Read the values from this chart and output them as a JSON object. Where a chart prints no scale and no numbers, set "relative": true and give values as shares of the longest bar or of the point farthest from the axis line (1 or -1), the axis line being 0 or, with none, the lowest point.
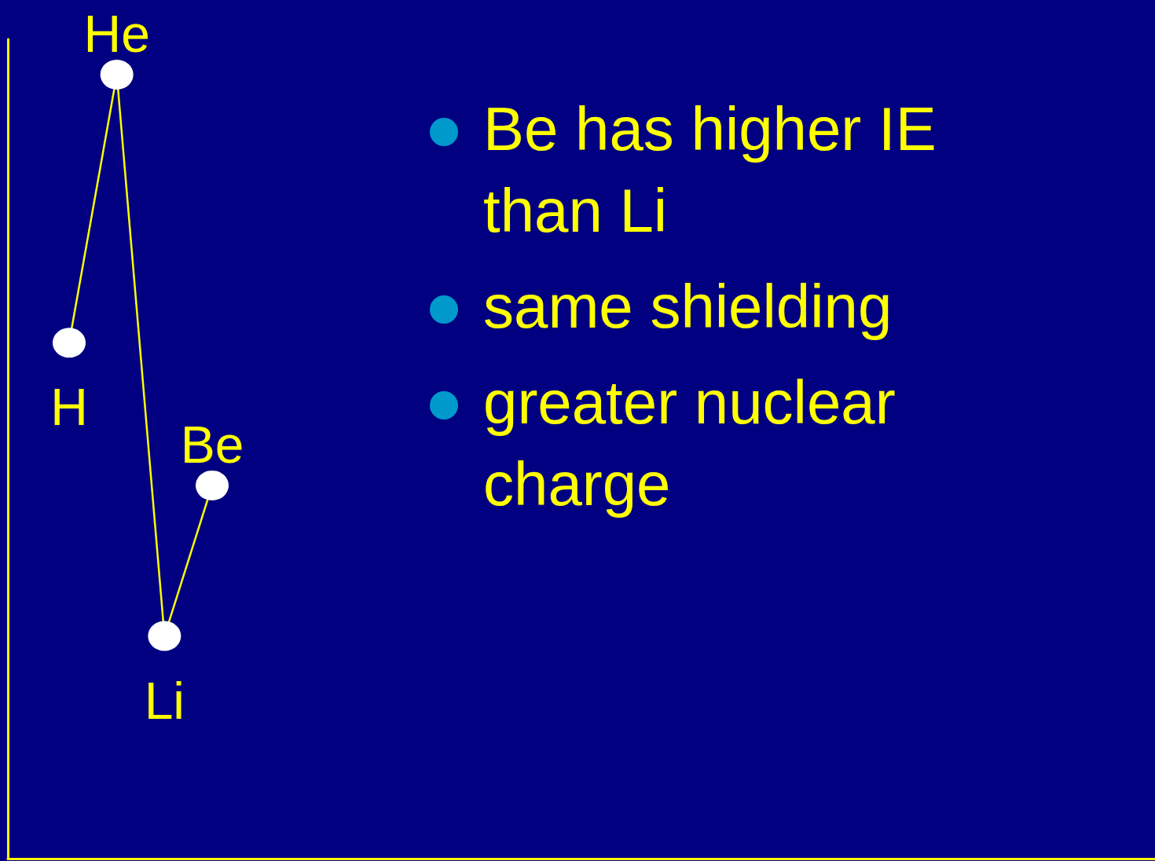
{
  "chart_data": {
    "type": "line",
    "relative": true,
    "categories": [
      "H",
      "He",
      "Li",
      "Be"
    ],
    "series": [
      {
        "color": "#ffff00",
        "values": [
          0.658,
          1,
          0.284,
          0.476
        ]
      }
    ],
    "marker": "circle",
    "line_style": "solid",
    "grid": false,
    "tick_labels": false,
    "annotations": [
      "Be has higher IE than Li",
      "same shielding",
      "greater nuclear charge"
    ]
  }
}
